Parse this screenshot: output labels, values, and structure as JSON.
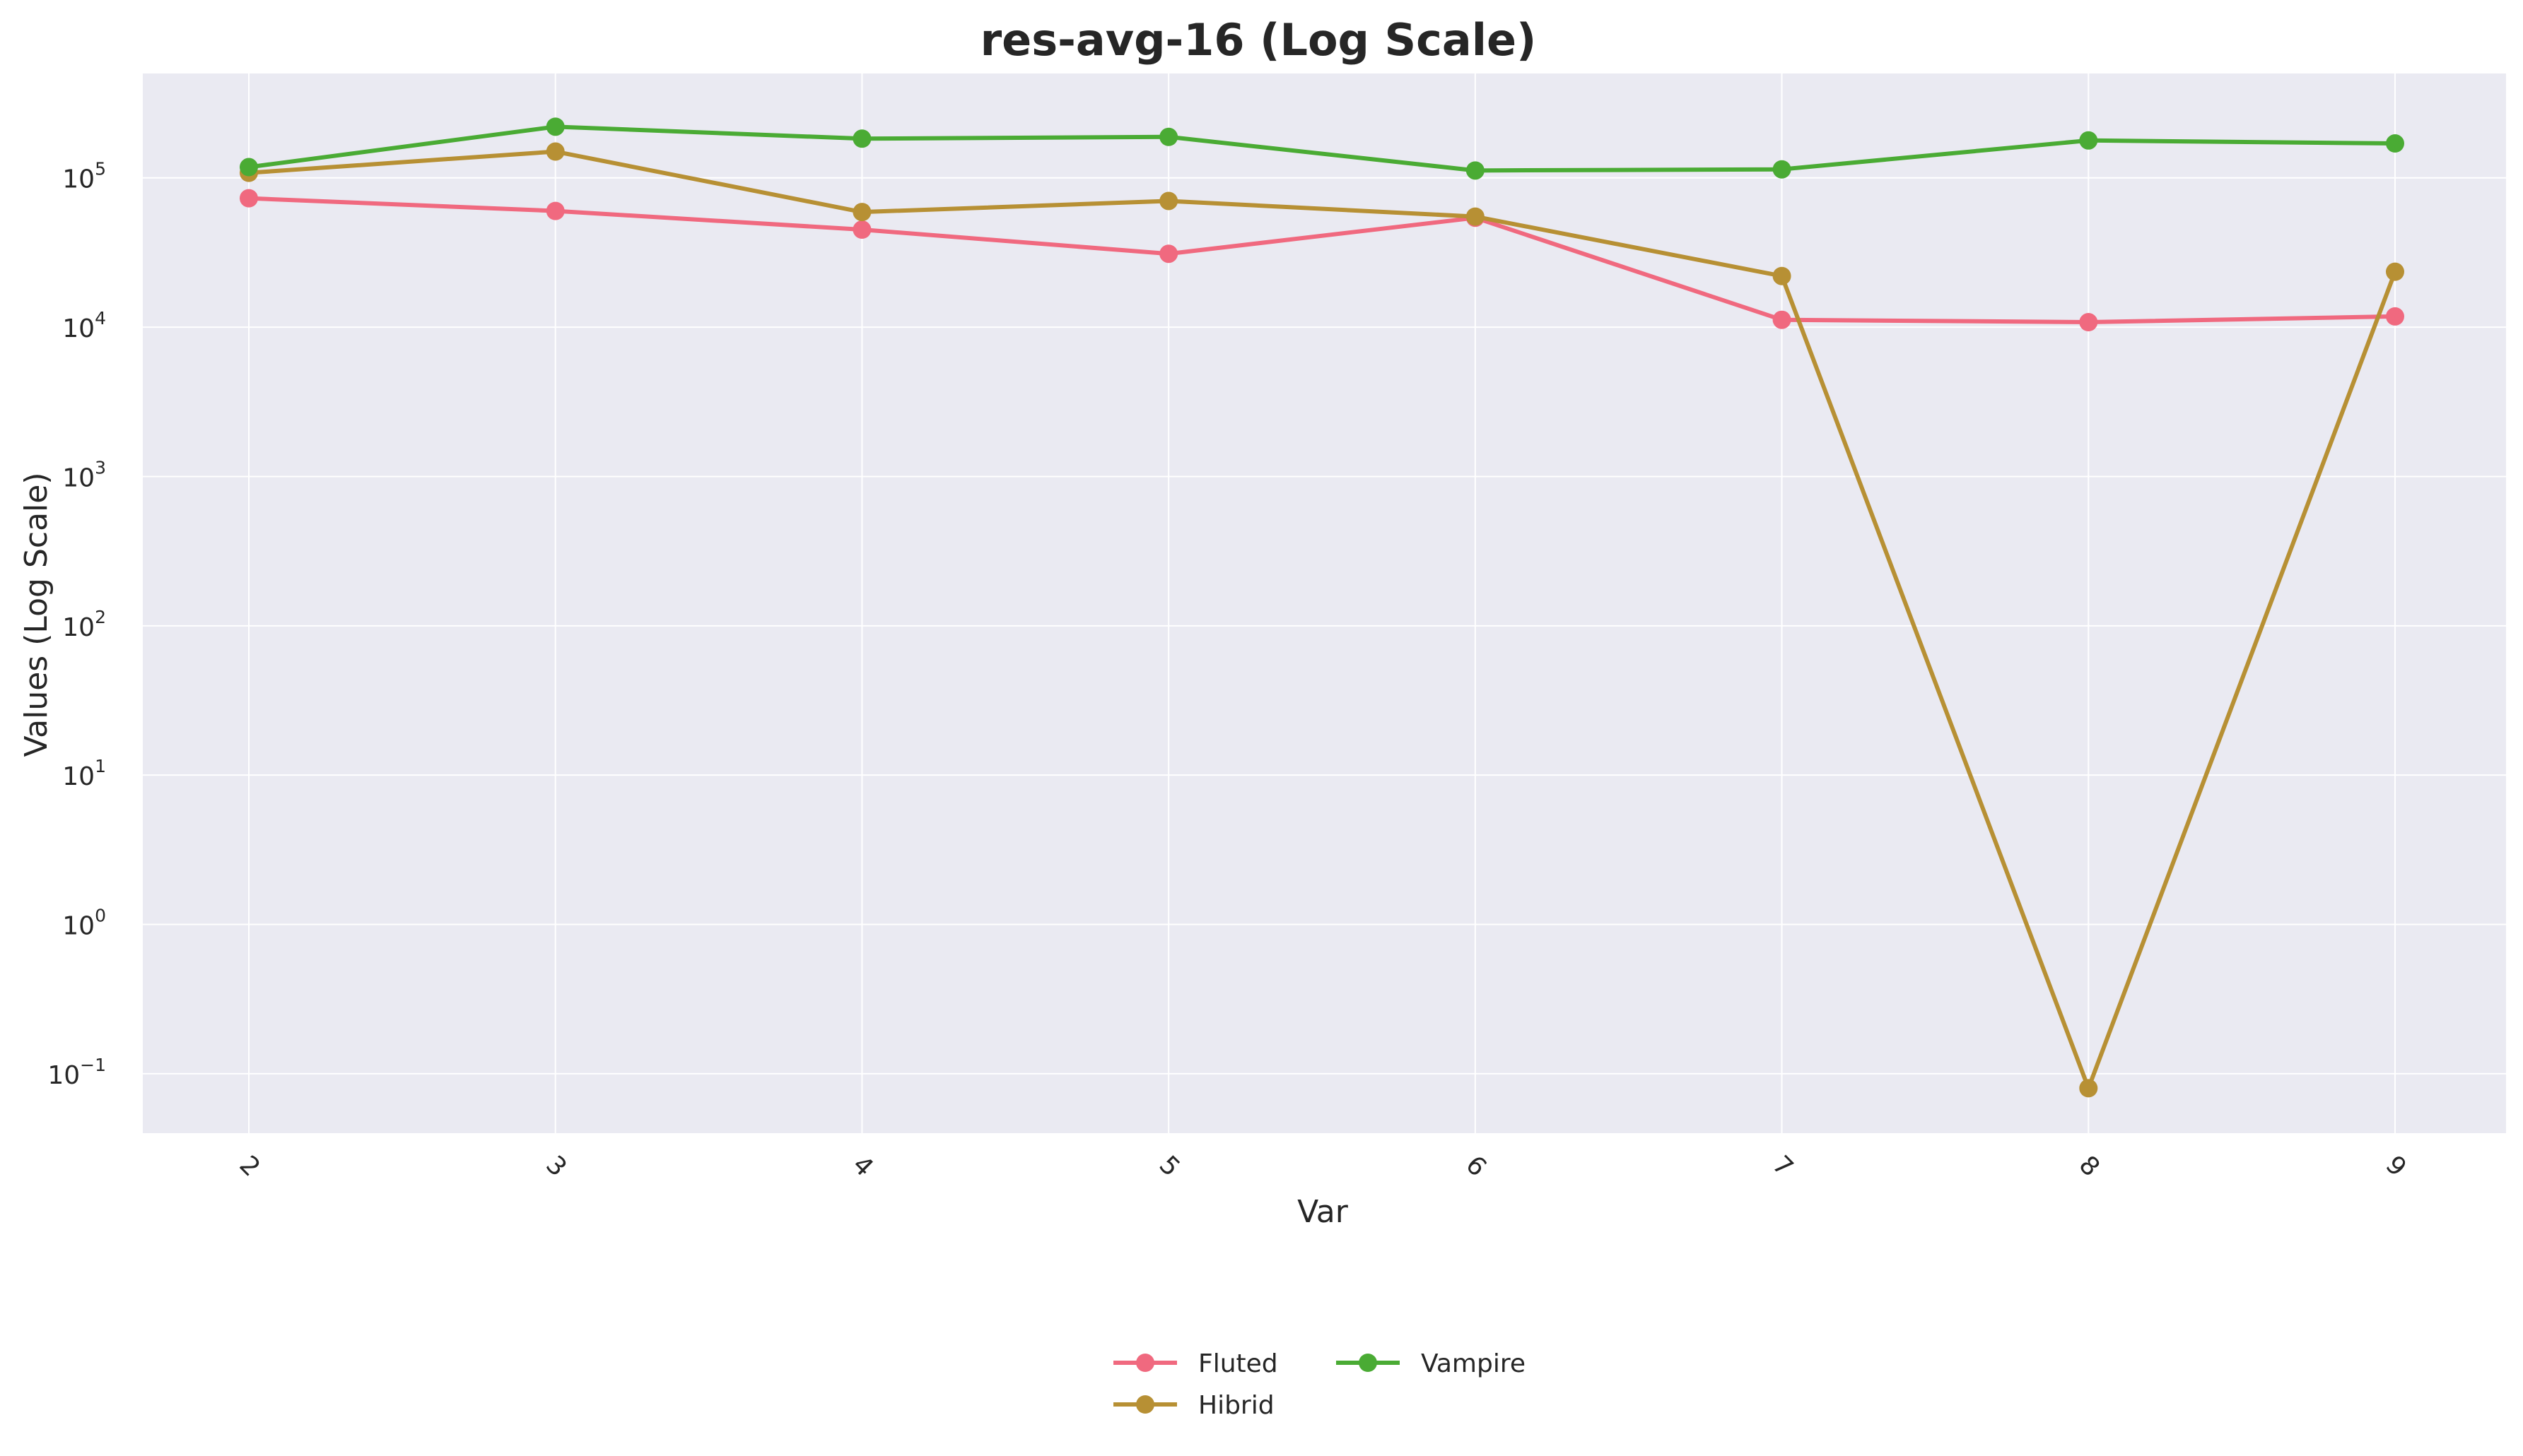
{
  "chart_data": {
    "type": "line",
    "title": "res-avg-16 (Log Scale)",
    "xlabel": "Var",
    "ylabel": "Values (Log Scale)",
    "y_scale": "log",
    "ylim": [
      0.04,
      500000
    ],
    "x_tick_rotation_deg": 45,
    "categories": [
      "2",
      "3",
      "4",
      "5",
      "6",
      "7",
      "8",
      "9"
    ],
    "y_ticks": [
      {
        "base": "10",
        "exp": "5",
        "value": 100000
      },
      {
        "base": "10",
        "exp": "4",
        "value": 10000
      },
      {
        "base": "10",
        "exp": "3",
        "value": 1000
      },
      {
        "base": "10",
        "exp": "2",
        "value": 100
      },
      {
        "base": "10",
        "exp": "1",
        "value": 10
      },
      {
        "base": "10",
        "exp": "0",
        "value": 1
      },
      {
        "base": "10",
        "exp": "−1",
        "value": 0.1
      }
    ],
    "grid": true,
    "background": "#eaeaf2",
    "grid_color": "#ffffff",
    "legend_position": "bottom-center",
    "series": [
      {
        "name": "Fluted",
        "color": "#f0697f",
        "values": [
          73000,
          60000,
          45000,
          31000,
          54000,
          11200,
          10800,
          11800
        ]
      },
      {
        "name": "Hibrid",
        "color": "#b79034",
        "values": [
          108000,
          150000,
          59000,
          70000,
          55000,
          22000,
          0.08,
          23500
        ]
      },
      {
        "name": "Vampire",
        "color": "#4aab34",
        "values": [
          118000,
          220000,
          183000,
          188000,
          112000,
          114000,
          178000,
          170000
        ]
      }
    ]
  }
}
